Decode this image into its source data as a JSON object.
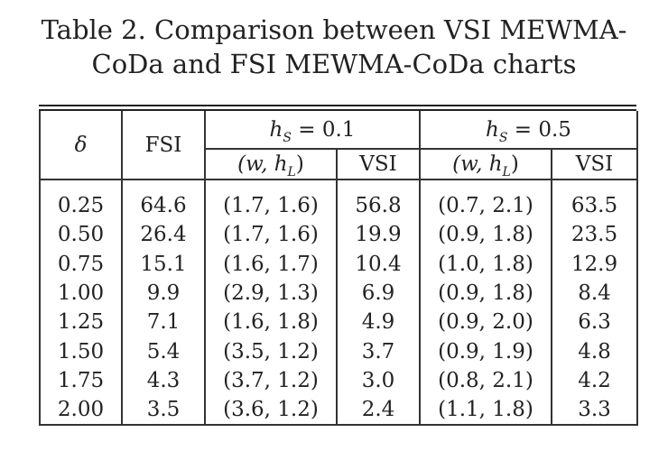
{
  "caption": {
    "line1": "Table 2. Comparison between VSI MEWMA-",
    "line2": "CoDa and FSI MEWMA-CoDa charts"
  },
  "table": {
    "headers": {
      "delta": "δ",
      "fsi": "FSI",
      "group1": {
        "param": "h",
        "sub": "S",
        "eq": " = 0.1"
      },
      "group2": {
        "param": "h",
        "sub": "S",
        "eq": " = 0.5"
      },
      "wh_label_pre": "(w, h",
      "wh_label_sub": "L",
      "wh_label_post": ")",
      "vsi": "VSI"
    },
    "rows": [
      {
        "delta": "0.25",
        "fsi": "64.6",
        "wh1": "(1.7, 1.6)",
        "vsi1": "56.8",
        "wh2": "(0.7, 2.1)",
        "vsi2": "63.5"
      },
      {
        "delta": "0.50",
        "fsi": "26.4",
        "wh1": "(1.7, 1.6)",
        "vsi1": "19.9",
        "wh2": "(0.9, 1.8)",
        "vsi2": "23.5"
      },
      {
        "delta": "0.75",
        "fsi": "15.1",
        "wh1": "(1.6, 1.7)",
        "vsi1": "10.4",
        "wh2": "(1.0, 1.8)",
        "vsi2": "12.9"
      },
      {
        "delta": "1.00",
        "fsi": "9.9",
        "wh1": "(2.9, 1.3)",
        "vsi1": "6.9",
        "wh2": "(0.9, 1.8)",
        "vsi2": "8.4"
      },
      {
        "delta": "1.25",
        "fsi": "7.1",
        "wh1": "(1.6, 1.8)",
        "vsi1": "4.9",
        "wh2": "(0.9, 2.0)",
        "vsi2": "6.3"
      },
      {
        "delta": "1.50",
        "fsi": "5.4",
        "wh1": "(3.5, 1.2)",
        "vsi1": "3.7",
        "wh2": "(0.9, 1.9)",
        "vsi2": "4.8"
      },
      {
        "delta": "1.75",
        "fsi": "4.3",
        "wh1": "(3.7, 1.2)",
        "vsi1": "3.0",
        "wh2": "(0.8, 2.1)",
        "vsi2": "4.2"
      },
      {
        "delta": "2.00",
        "fsi": "3.5",
        "wh1": "(3.6, 1.2)",
        "vsi1": "2.4",
        "wh2": "(1.1, 1.8)",
        "vsi2": "3.3"
      }
    ]
  }
}
